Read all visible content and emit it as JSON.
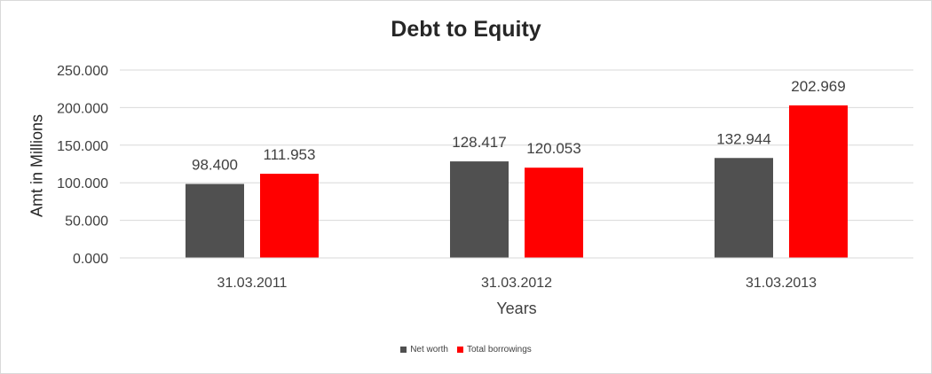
{
  "chart_data": {
    "type": "bar",
    "title": "Debt to Equity",
    "xlabel": "Years",
    "ylabel": "Amt in Millions",
    "categories": [
      "31.03.2011",
      "31.03.2012",
      "31.03.2013"
    ],
    "series": [
      {
        "name": "Net worth",
        "values": [
          98.4,
          128.417,
          132.944
        ],
        "labels": [
          "98.400",
          "128.417",
          "132.944"
        ],
        "color": "#505050"
      },
      {
        "name": "Total borrowings",
        "values": [
          111.953,
          120.053,
          202.969
        ],
        "labels": [
          "111.953",
          "120.053",
          "202.969"
        ],
        "color": "#ff0000"
      }
    ],
    "ylim": [
      0,
      250
    ],
    "yticks": [
      0,
      50,
      100,
      150,
      200,
      250
    ],
    "ytick_labels": [
      "0.000",
      "50.000",
      "100.000",
      "150.000",
      "200.000",
      "250.000"
    ],
    "grid": true,
    "legend_position": "bottom"
  }
}
